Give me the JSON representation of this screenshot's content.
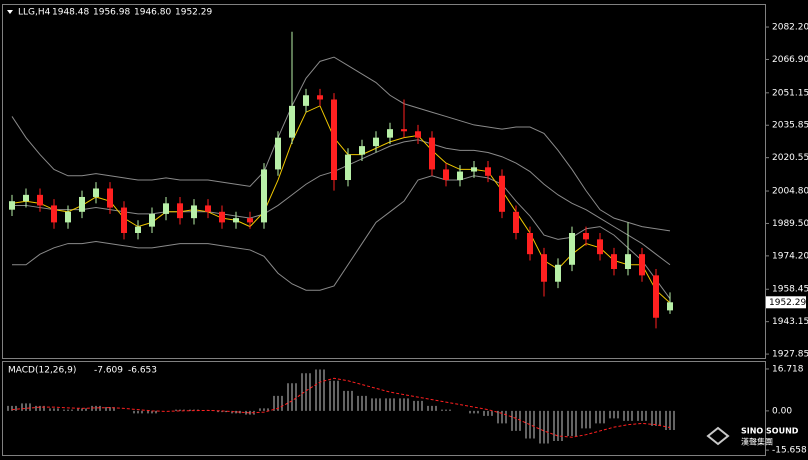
{
  "chart_data": [
    {
      "type": "candlestick",
      "title": "LLG,H4",
      "header_values": [
        "1948.48",
        "1956.98",
        "1946.80",
        "1952.29"
      ],
      "open": [
        1996,
        2000,
        2003,
        1998,
        1990,
        1995,
        2002,
        2006,
        1997,
        1985,
        1988,
        1994,
        1999,
        1992,
        1998,
        1995,
        1990,
        1992,
        1990,
        2015,
        2030,
        2045,
        2050,
        2048,
        2010,
        2022,
        2026,
        2030,
        2034,
        2033,
        2030,
        2015,
        2010,
        2014,
        2016,
        2012,
        1995,
        1985,
        1975,
        1962,
        1970,
        1985,
        1982,
        1975,
        1968,
        1975,
        1965,
        1948.48
      ],
      "high": [
        2003,
        2006,
        2006,
        2001,
        1998,
        2005,
        2009,
        2009,
        2000,
        1991,
        1997,
        2002,
        2002,
        2001,
        2001,
        1998,
        1995,
        1995,
        2018,
        2033,
        2080,
        2053,
        2053,
        2051,
        2025,
        2029,
        2033,
        2037,
        2048,
        2036,
        2033,
        2018,
        2017,
        2019,
        2019,
        2015,
        1998,
        1988,
        1978,
        1973,
        1988,
        1988,
        1985,
        1978,
        1990,
        1978,
        1968,
        1956.98
      ],
      "low": [
        1993,
        1997,
        1995,
        1987,
        1987,
        1992,
        1999,
        1994,
        1982,
        1982,
        1985,
        1991,
        1989,
        1989,
        1992,
        1987,
        1987,
        1987,
        1987,
        2012,
        2027,
        2042,
        2045,
        2005,
        2007,
        2019,
        2023,
        2027,
        2030,
        2027,
        2012,
        2007,
        2007,
        2011,
        2009,
        1992,
        1982,
        1972,
        1955,
        1959,
        1967,
        1979,
        1972,
        1965,
        1965,
        1962,
        1940,
        1946.8
      ],
      "close": [
        2000,
        2003,
        1998,
        1990,
        1995,
        2002,
        2006,
        1997,
        1985,
        1988,
        1994,
        1999,
        1992,
        1998,
        1995,
        1990,
        1992,
        1990,
        2015,
        2030,
        2045,
        2050,
        2048,
        2010,
        2022,
        2026,
        2030,
        2034,
        2033,
        2030,
        2015,
        2010,
        2014,
        2016,
        2012,
        1995,
        1985,
        1975,
        1962,
        1970,
        1985,
        1982,
        1975,
        1968,
        1975,
        1965,
        1945,
        1952.29
      ],
      "up_color": "#b8f0a8",
      "down_color": "#ff2020",
      "series": [
        {
          "color": "#8a8a8a",
          "values": [
            2040,
            2030,
            2022,
            2015,
            2012,
            2012,
            2013,
            2012,
            2011,
            2010,
            2010,
            2011,
            2010,
            2010,
            2010,
            2009,
            2008,
            2007,
            2014,
            2030,
            2045,
            2058,
            2066,
            2068,
            2064,
            2060,
            2056,
            2050,
            2046,
            2044,
            2042,
            2040,
            2038,
            2036,
            2035,
            2034,
            2035,
            2035,
            2032,
            2024,
            2015,
            2005,
            1996,
            1992,
            1990,
            1988,
            1987,
            1986
          ]
        },
        {
          "color": "#8a8a8a",
          "values": [
            1998,
            1998,
            1997,
            1996,
            1996,
            1996,
            1997,
            1996,
            1995,
            1994,
            1994,
            1995,
            1995,
            1995,
            1995,
            1994,
            1993,
            1992,
            1994,
            1998,
            2003,
            2008,
            2012,
            2014,
            2017,
            2020,
            2023,
            2026,
            2028,
            2029,
            2027,
            2025,
            2024,
            2024,
            2023,
            2021,
            2018,
            2014,
            2008,
            2003,
            1999,
            1996,
            1992,
            1988,
            1984,
            1980,
            1975,
            1970
          ]
        },
        {
          "color": "#8a8a8a",
          "values": [
            1970,
            1970,
            1975,
            1978,
            1980,
            1980,
            1981,
            1980,
            1979,
            1978,
            1978,
            1979,
            1980,
            1980,
            1980,
            1979,
            1978,
            1977,
            1974,
            1966,
            1961,
            1958,
            1958,
            1960,
            1970,
            1980,
            1990,
            1995,
            2000,
            2010,
            2012,
            2010,
            2010,
            2012,
            2011,
            2008,
            2000,
            1993,
            1984,
            1982,
            1983,
            1987,
            1988,
            1984,
            1978,
            1972,
            1963,
            1954
          ]
        },
        {
          "color": "#f0c800",
          "values": [
            1999,
            2000,
            1999,
            1996,
            1995,
            1998,
            2002,
            2000,
            1992,
            1988,
            1990,
            1995,
            1995,
            1996,
            1995,
            1992,
            1991,
            1988,
            1995,
            2010,
            2028,
            2042,
            2045,
            2030,
            2022,
            2022,
            2025,
            2028,
            2030,
            2031,
            2024,
            2018,
            2015,
            2015,
            2014,
            2005,
            1995,
            1985,
            1972,
            1968,
            1975,
            1980,
            1978,
            1972,
            1970,
            1970,
            1958,
            1952
          ]
        }
      ],
      "ylim": [
        1926,
        2092.6
      ],
      "yticks": [
        {
          "value": 2082.2,
          "label": "2082.20"
        },
        {
          "value": 2066.9,
          "label": "2066.90"
        },
        2051.15,
        2035.85,
        2020.55,
        {
          "value": 2004.8,
          "label": "2004.80"
        },
        {
          "value": 1989.5,
          "label": "1989.50"
        },
        {
          "value": 1974.2,
          "label": "1974.20"
        },
        1958.45,
        1943.15,
        1927.85
      ]
    },
    {
      "type": "macd",
      "title": "MACD(12,26,9)",
      "histogram": {
        "color": "#c8c8c8",
        "values": [
          2,
          3,
          2,
          1,
          0.5,
          1,
          2,
          1.5,
          0,
          -1,
          -1,
          0,
          0.5,
          0.5,
          0.3,
          -0.5,
          -1,
          -1.5,
          1,
          6,
          11,
          15,
          16.5,
          12,
          8,
          6,
          5,
          5,
          5,
          4,
          2,
          0.5,
          0,
          -1,
          -2,
          -5,
          -8,
          -11,
          -13,
          -12,
          -10,
          -7,
          -5,
          -3,
          -4,
          -4,
          -6,
          -7.609
        ]
      },
      "signal": {
        "color": "#ff2020",
        "values": [
          0.5,
          1,
          1.5,
          1.5,
          1.2,
          1,
          1.2,
          1.3,
          1,
          0.5,
          0,
          -0.2,
          0,
          0.1,
          0.2,
          0,
          -0.4,
          -0.8,
          -0.5,
          1,
          4,
          8,
          11.5,
          13,
          12,
          10.5,
          9,
          7.5,
          6.5,
          5.5,
          4.5,
          3.5,
          2.5,
          1.5,
          0.5,
          -1,
          -3,
          -5.5,
          -8,
          -10,
          -10.5,
          -9.5,
          -8,
          -6.5,
          -5.5,
          -5,
          -5.5,
          -6.653
        ]
      },
      "ylim": [
        -17.6,
        19.5
      ],
      "yticks": [
        16.718,
        {
          "value": 0,
          "label": "0.00"
        },
        -15.658
      ]
    }
  ],
  "watermark": {
    "brand": "SINO SOUND",
    "subtitle": "漢聲集團"
  }
}
